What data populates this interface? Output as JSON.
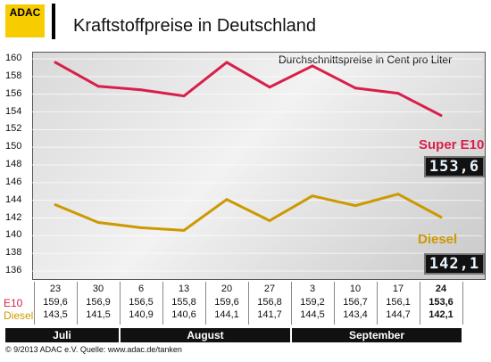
{
  "header": {
    "logo": "ADAC",
    "title": "Kraftstoffpreise in Deutschland"
  },
  "subtitle": "Durchschnittspreise in Cent pro Liter",
  "chart_data": {
    "type": "line",
    "title": "Kraftstoffpreise in Deutschland",
    "ylabel": "Durchschnittspreise in Cent pro Liter",
    "xlabel": "",
    "ylim": [
      136,
      160
    ],
    "yticks": [
      "160",
      "158",
      "156",
      "154",
      "152",
      "150",
      "148",
      "146",
      "144",
      "142",
      "140",
      "138",
      "136"
    ],
    "categories": [
      "23",
      "30",
      "6",
      "13",
      "20",
      "27",
      "3",
      "10",
      "17",
      "24"
    ],
    "series": [
      {
        "name": "Super E10",
        "row_label": "E10",
        "color": "#d81f4a",
        "values": [
          159.6,
          156.9,
          156.5,
          155.8,
          159.6,
          156.8,
          159.2,
          156.7,
          156.1,
          153.6
        ],
        "labels": [
          "159,6",
          "156,9",
          "156,5",
          "155,8",
          "159,6",
          "156,8",
          "159,2",
          "156,7",
          "156,1",
          "153,6"
        ]
      },
      {
        "name": "Diesel",
        "row_label": "Diesel",
        "color": "#cc9900",
        "values": [
          143.5,
          141.5,
          140.9,
          140.6,
          144.1,
          141.7,
          144.5,
          143.4,
          144.7,
          142.1
        ],
        "labels": [
          "143,5",
          "141,5",
          "140,9",
          "140,6",
          "144,1",
          "141,7",
          "144,5",
          "143,4",
          "144,7",
          "142,1"
        ]
      }
    ],
    "months": [
      "Juli",
      "August",
      "September"
    ],
    "grid": true
  },
  "displays": {
    "super_label": "Super E10",
    "super_value": "153,6",
    "diesel_label": "Diesel",
    "diesel_value": "142,1"
  },
  "footer": "© 9/2013  ADAC e.V.    Quelle: www.adac.de/tanken"
}
